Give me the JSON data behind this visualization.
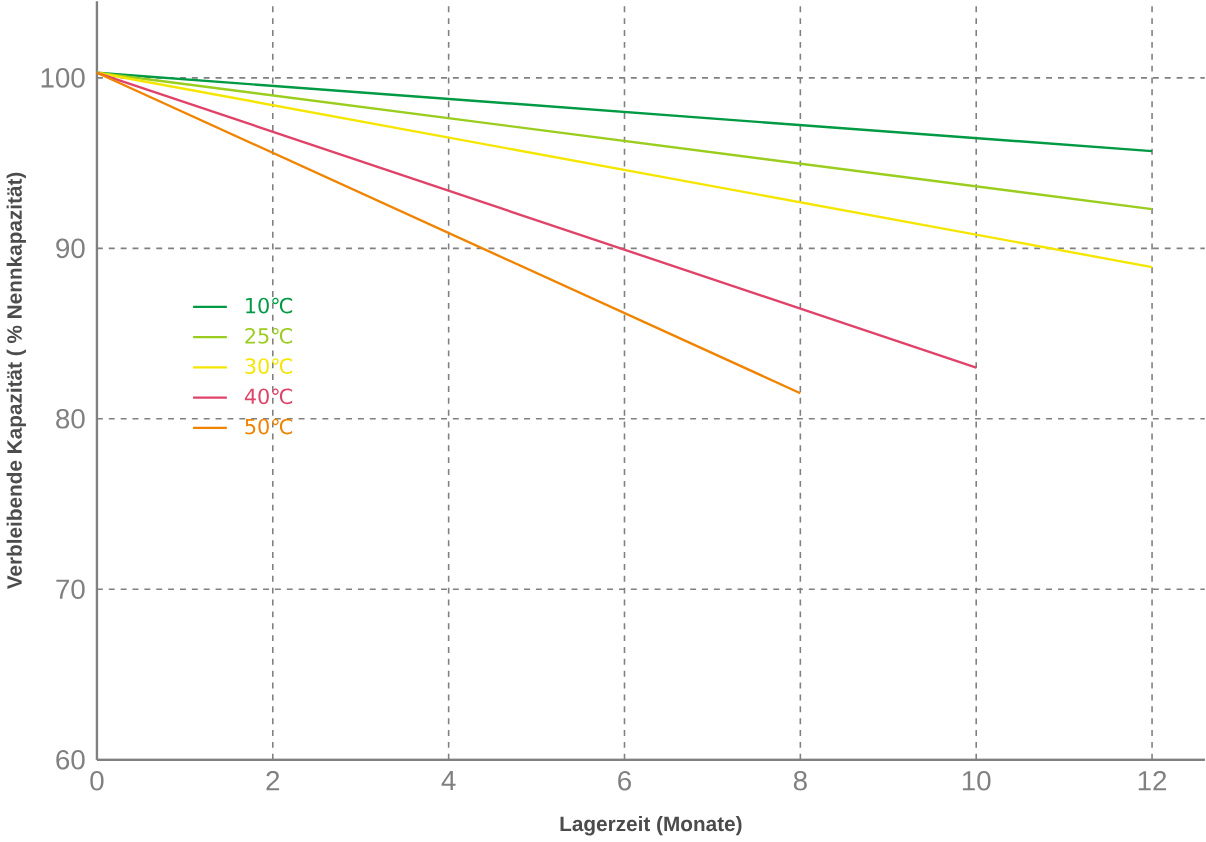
{
  "chart_data": {
    "type": "line",
    "xlabel": "Lagerzeit (Monate)",
    "ylabel": "Verbleibende Kapazität ( % Nennkapazität)",
    "xlim": [
      0,
      12.6
    ],
    "ylim": [
      60,
      104.5
    ],
    "xticks": [
      0,
      2,
      4,
      6,
      8,
      10,
      12
    ],
    "yticks": [
      60,
      70,
      80,
      90,
      100
    ],
    "grid": true,
    "legend": "left",
    "marker": "none",
    "line_style": "solid",
    "series": [
      {
        "name": "10℃",
        "color": "#009a44",
        "x": [
          0,
          12
        ],
        "values": [
          100.3,
          95.7
        ]
      },
      {
        "name": "25℃",
        "color": "#9acd1e",
        "x": [
          0,
          12
        ],
        "values": [
          100.3,
          92.3
        ]
      },
      {
        "name": "30℃",
        "color": "#f5e600",
        "x": [
          0,
          12
        ],
        "values": [
          100.3,
          88.9
        ]
      },
      {
        "name": "40℃",
        "color": "#e0436a",
        "x": [
          0,
          10
        ],
        "values": [
          100.3,
          83.0
        ]
      },
      {
        "name": "50℃",
        "color": "#f08300",
        "x": [
          0,
          8
        ],
        "values": [
          100.3,
          81.5
        ]
      }
    ]
  }
}
